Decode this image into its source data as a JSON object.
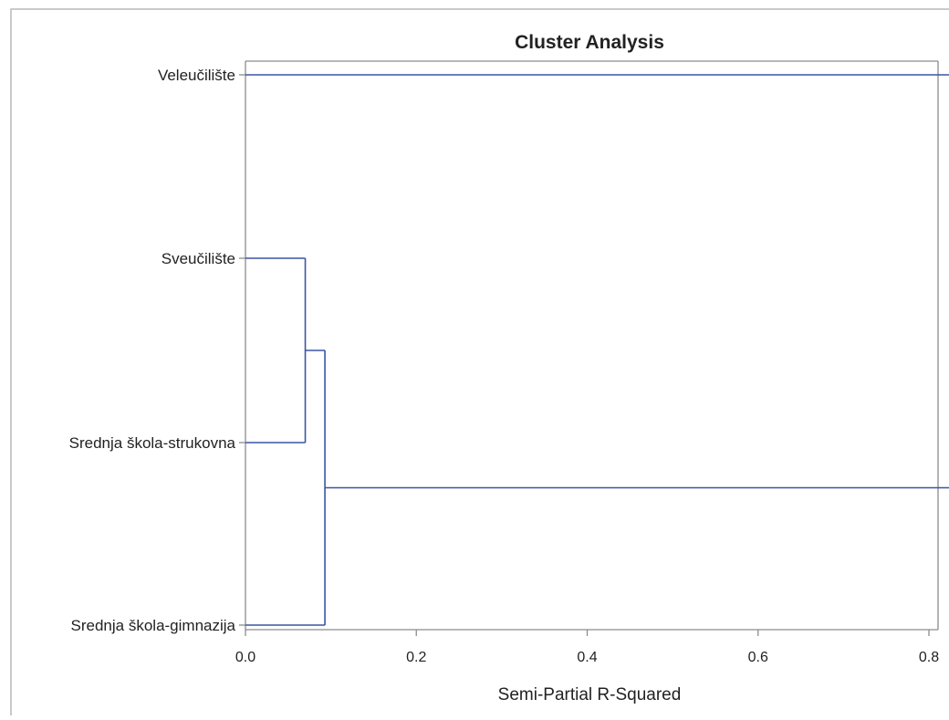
{
  "chart_data": {
    "type": "dendrogram",
    "title": "Cluster Analysis",
    "xlabel": "Semi-Partial R-Squared",
    "ylabel": "",
    "xlim": [
      0,
      0.84
    ],
    "x_ticks": [
      "0.0",
      "0.2",
      "0.4",
      "0.6",
      "0.8"
    ],
    "x_tick_values": [
      0,
      0.2,
      0.4,
      0.6,
      0.8
    ],
    "leaves": [
      "Veleučilište",
      "Sveučilište",
      "Srednja škola-strukovna",
      "Srednja škola-gimnazija"
    ],
    "merges": [
      {
        "left": "Sveučilište",
        "right": "Srednja škola-strukovna",
        "height": 0.07
      },
      {
        "left": "Sveučilište + Srednja škola-strukovna",
        "right": "Srednja škola-gimnazija",
        "height": 0.093
      },
      {
        "left": "Veleučilište",
        "right": "Sveučilište + Srednja škola-strukovna + Srednja škola-gimnazija",
        "height": 0.84
      }
    ],
    "grid": false,
    "legend": "none",
    "line_color": "#3a55a4"
  }
}
